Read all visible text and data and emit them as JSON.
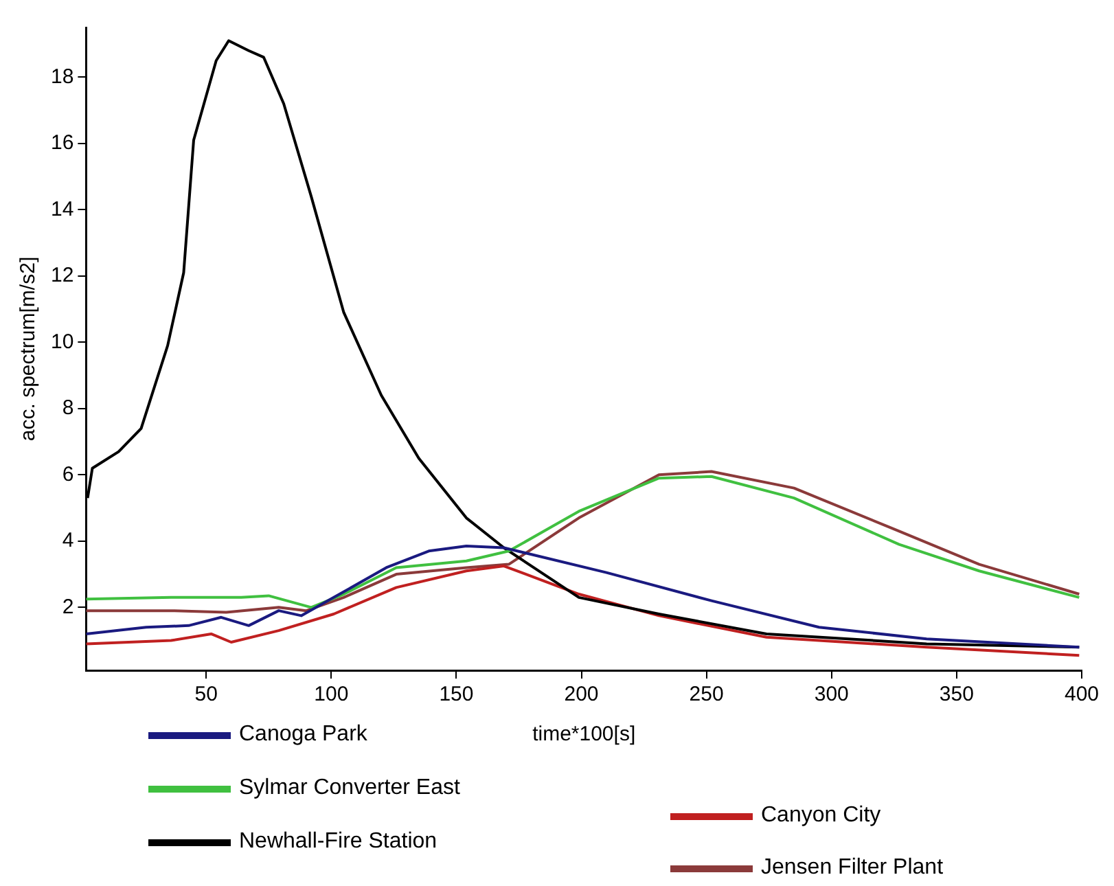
{
  "chart_data": {
    "type": "line",
    "xlabel": "time*100[s]",
    "ylabel": "acc. spectrum[m/s2]",
    "xlim": [
      2,
      400
    ],
    "ylim": [
      0.1,
      19.5
    ],
    "xticks": [
      50,
      100,
      150,
      200,
      250,
      300,
      350,
      400
    ],
    "yticks": [
      2,
      4,
      6,
      8,
      10,
      12,
      14,
      16,
      18
    ],
    "grid": false,
    "legend": "bottom",
    "marker": "none",
    "line_style": "solid",
    "series": [
      {
        "name": "Canoga Park",
        "color": "#1a1a80",
        "x": [
          2,
          26,
          43,
          56,
          67,
          79,
          88,
          101,
          122,
          139,
          154,
          169,
          210,
          252,
          295,
          338,
          399
        ],
        "values": [
          1.2,
          1.4,
          1.45,
          1.7,
          1.45,
          1.9,
          1.75,
          2.3,
          3.2,
          3.7,
          3.85,
          3.8,
          3.05,
          2.2,
          1.4,
          1.05,
          0.8
        ]
      },
      {
        "name": "Sylmar Converter East",
        "color": "#40c040",
        "x": [
          2,
          36,
          64,
          75,
          92,
          105,
          126,
          154,
          171,
          199,
          231,
          252,
          285,
          327,
          359,
          399
        ],
        "values": [
          2.25,
          2.3,
          2.3,
          2.35,
          2.0,
          2.4,
          3.2,
          3.4,
          3.7,
          4.9,
          5.9,
          5.95,
          5.3,
          3.9,
          3.1,
          2.3
        ]
      },
      {
        "name": "Newhall-Fire Station",
        "color": "#000000",
        "x": [
          2.6,
          4.5,
          15,
          24,
          34.6,
          41,
          45,
          54,
          59,
          67,
          73,
          81,
          92,
          105,
          120,
          135,
          154,
          169,
          199,
          231,
          274,
          338,
          399
        ],
        "values": [
          5.3,
          6.2,
          6.7,
          7.4,
          9.9,
          12.1,
          16.1,
          18.5,
          19.1,
          18.8,
          18.6,
          17.2,
          14.4,
          10.9,
          8.4,
          6.5,
          4.7,
          3.8,
          2.3,
          1.8,
          1.2,
          0.9,
          0.8
        ]
      },
      {
        "name": "Canyon City",
        "color": "#c02020",
        "x": [
          2,
          36,
          52,
          60,
          79,
          101,
          126,
          154,
          169,
          199,
          231,
          274,
          338,
          399
        ],
        "values": [
          0.9,
          1.0,
          1.2,
          0.95,
          1.3,
          1.8,
          2.6,
          3.1,
          3.25,
          2.4,
          1.75,
          1.1,
          0.8,
          0.55
        ]
      },
      {
        "name": "Jensen Filter Plant",
        "color": "#8b3a3a",
        "x": [
          2,
          36,
          58,
          79,
          90,
          105,
          126,
          154,
          171,
          199,
          231,
          252,
          285,
          327,
          359,
          399
        ],
        "values": [
          1.9,
          1.9,
          1.85,
          2.0,
          1.9,
          2.3,
          3.0,
          3.2,
          3.3,
          4.7,
          6.0,
          6.1,
          5.6,
          4.3,
          3.3,
          2.4
        ]
      }
    ]
  }
}
